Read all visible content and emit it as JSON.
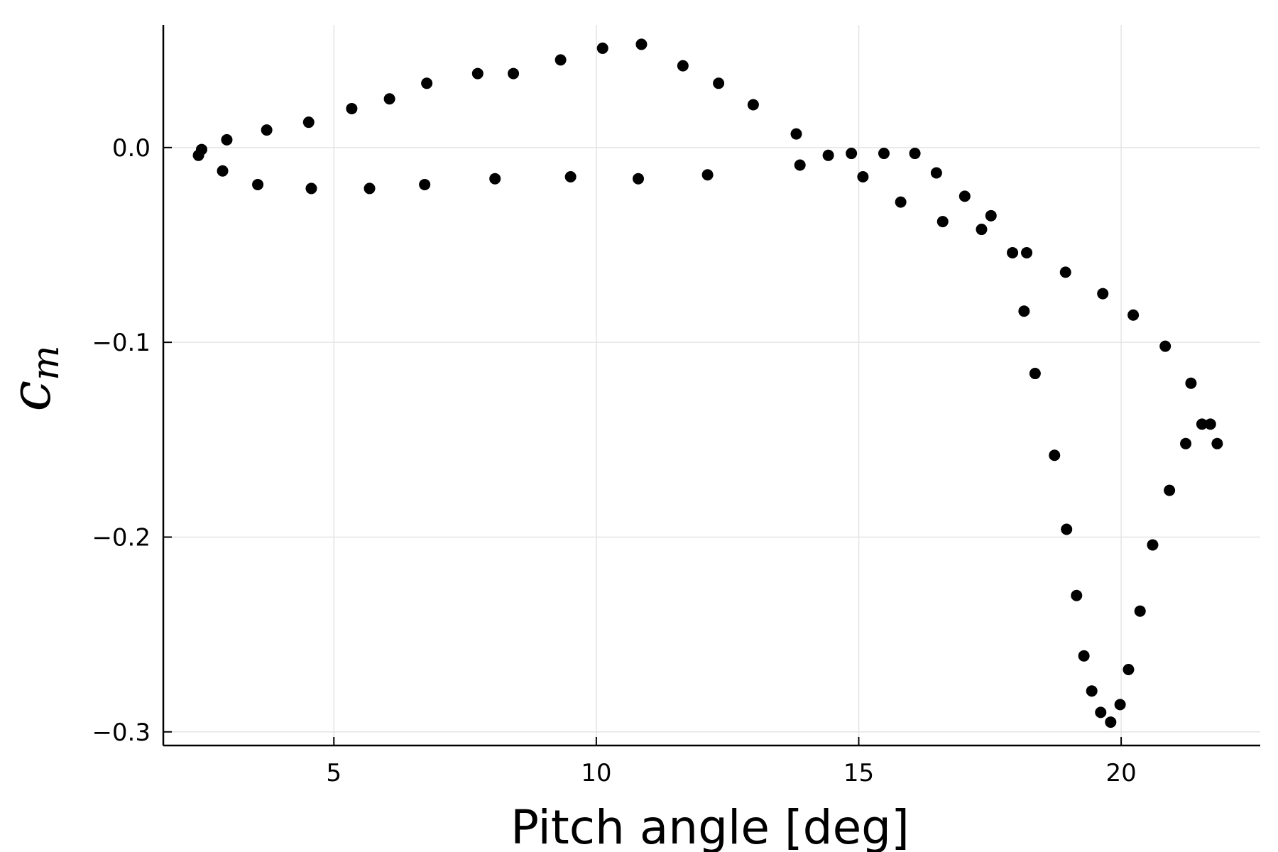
{
  "chart_data": {
    "type": "scatter",
    "xlabel": "Pitch angle [deg]",
    "ylabel_base": "c",
    "ylabel_sub": "m",
    "xlim": [
      1.75,
      22.65
    ],
    "ylim": [
      -0.307,
      0.063
    ],
    "xticks": [
      5,
      10,
      15,
      20
    ],
    "xtick_labels": [
      "5",
      "10",
      "15",
      "20"
    ],
    "yticks": [
      0.0,
      -0.1,
      -0.2,
      -0.3
    ],
    "ytick_labels": [
      "0.0",
      "−0.1",
      "−0.2",
      "−0.3"
    ],
    "grid": true,
    "legend": false,
    "point_color": "#000000",
    "series": [
      {
        "points": [
          [
            2.42,
            -0.004
          ],
          [
            2.48,
            -0.001
          ],
          [
            2.88,
            -0.012
          ],
          [
            2.96,
            0.004
          ],
          [
            3.55,
            -0.019
          ],
          [
            3.72,
            0.009
          ],
          [
            4.52,
            0.013
          ],
          [
            4.57,
            -0.021
          ],
          [
            5.34,
            0.02
          ],
          [
            5.68,
            -0.021
          ],
          [
            6.06,
            0.025
          ],
          [
            6.73,
            -0.019
          ],
          [
            6.77,
            0.033
          ],
          [
            7.74,
            0.038
          ],
          [
            8.07,
            -0.016
          ],
          [
            8.42,
            0.038
          ],
          [
            9.32,
            0.045
          ],
          [
            9.51,
            -0.015
          ],
          [
            10.12,
            0.051
          ],
          [
            10.8,
            -0.016
          ],
          [
            10.86,
            0.053
          ],
          [
            11.65,
            0.042
          ],
          [
            12.12,
            -0.014
          ],
          [
            12.33,
            0.033
          ],
          [
            12.99,
            0.022
          ],
          [
            13.81,
            0.007
          ],
          [
            13.88,
            -0.009
          ],
          [
            14.42,
            -0.004
          ],
          [
            14.86,
            -0.003
          ],
          [
            15.08,
            -0.015
          ],
          [
            15.48,
            -0.003
          ],
          [
            15.8,
            -0.028
          ],
          [
            16.07,
            -0.003
          ],
          [
            16.48,
            -0.013
          ],
          [
            16.6,
            -0.038
          ],
          [
            17.02,
            -0.025
          ],
          [
            17.34,
            -0.042
          ],
          [
            17.52,
            -0.035
          ],
          [
            17.93,
            -0.054
          ],
          [
            18.15,
            -0.084
          ],
          [
            18.2,
            -0.054
          ],
          [
            18.36,
            -0.116
          ],
          [
            18.73,
            -0.158
          ],
          [
            18.94,
            -0.064
          ],
          [
            18.96,
            -0.196
          ],
          [
            19.15,
            -0.23
          ],
          [
            19.29,
            -0.261
          ],
          [
            19.44,
            -0.279
          ],
          [
            19.61,
            -0.29
          ],
          [
            19.65,
            -0.075
          ],
          [
            19.8,
            -0.295
          ],
          [
            19.98,
            -0.286
          ],
          [
            20.14,
            -0.268
          ],
          [
            20.23,
            -0.086
          ],
          [
            20.36,
            -0.238
          ],
          [
            20.6,
            -0.204
          ],
          [
            20.84,
            -0.102
          ],
          [
            20.92,
            -0.176
          ],
          [
            21.23,
            -0.152
          ],
          [
            21.33,
            -0.121
          ],
          [
            21.54,
            -0.142
          ],
          [
            21.7,
            -0.142
          ],
          [
            21.83,
            -0.152
          ]
        ]
      }
    ]
  }
}
